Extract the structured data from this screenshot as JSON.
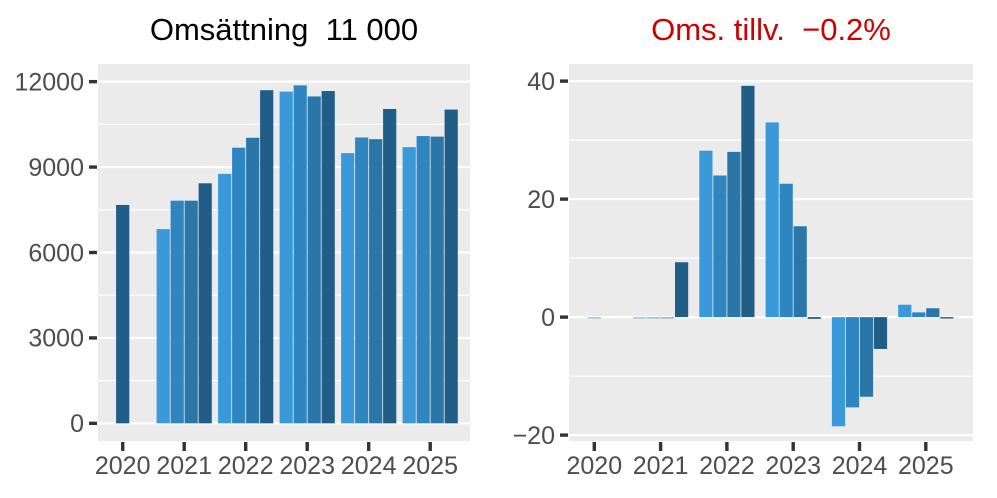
{
  "figure": {
    "background": "#ffffff",
    "panel_background": "#ebebeb",
    "grid_color": "#ffffff",
    "axis_text_color": "#4d4d4d",
    "tick_mark_color": "#333333"
  },
  "chart_data": [
    {
      "type": "bar",
      "title": "Omsättning  11 000",
      "title_color": "#000000",
      "legend": "none",
      "grid": "horizontal-only",
      "x_tick_labels": [
        "2020",
        "2021",
        "2022",
        "2023",
        "2024",
        "2025"
      ],
      "y_ticks": [
        0,
        3000,
        6000,
        9000,
        12000
      ],
      "y_tick_labels": [
        "0",
        "3000",
        "6000",
        "9000",
        "12000"
      ],
      "y_minor": [
        1500,
        4500,
        7500,
        10500
      ],
      "ylim": [
        -620,
        12620
      ],
      "bar_colors": [
        "#3a99d9",
        "#2e86c1",
        "#2b76a9",
        "#215e87"
      ],
      "groups": [
        {
          "year": "2020",
          "bars": [
            {
              "value": 7670,
              "color_index": 3,
              "centered": true
            }
          ]
        },
        {
          "year": "2021",
          "bars": [
            {
              "value": 6820,
              "color_index": 0
            },
            {
              "value": 7820,
              "color_index": 1
            },
            {
              "value": 7820,
              "color_index": 2
            },
            {
              "value": 8430,
              "color_index": 3
            }
          ]
        },
        {
          "year": "2022",
          "bars": [
            {
              "value": 8760,
              "color_index": 0
            },
            {
              "value": 9680,
              "color_index": 1
            },
            {
              "value": 10030,
              "color_index": 2
            },
            {
              "value": 11700,
              "color_index": 3
            }
          ]
        },
        {
          "year": "2023",
          "bars": [
            {
              "value": 11650,
              "color_index": 0
            },
            {
              "value": 11870,
              "color_index": 1
            },
            {
              "value": 11480,
              "color_index": 2
            },
            {
              "value": 11670,
              "color_index": 3
            }
          ]
        },
        {
          "year": "2024",
          "bars": [
            {
              "value": 9490,
              "color_index": 0
            },
            {
              "value": 10040,
              "color_index": 1
            },
            {
              "value": 9980,
              "color_index": 2
            },
            {
              "value": 11040,
              "color_index": 3
            }
          ]
        },
        {
          "year": "2025",
          "bars": [
            {
              "value": 9700,
              "color_index": 0
            },
            {
              "value": 10090,
              "color_index": 1
            },
            {
              "value": 10070,
              "color_index": 2
            },
            {
              "value": 11020,
              "color_index": 3
            }
          ]
        }
      ]
    },
    {
      "type": "bar",
      "title": "Oms. tillv.  −0.2%",
      "title_color": "#cc0000",
      "legend": "none",
      "grid": "horizontal-only",
      "x_tick_labels": [
        "2020",
        "2021",
        "2022",
        "2023",
        "2024",
        "2025"
      ],
      "y_ticks": [
        -20,
        0,
        20,
        40
      ],
      "y_tick_labels": [
        "−20",
        "0",
        "20",
        "40"
      ],
      "y_minor": [
        -10,
        10,
        30
      ],
      "ylim": [
        -21,
        42.9
      ],
      "bar_colors": [
        "#3a99d9",
        "#2e86c1",
        "#2b76a9",
        "#215e87"
      ],
      "groups": [
        {
          "year": "2020",
          "bars": [
            {
              "value": -0.1,
              "color_index": 0,
              "centered": true,
              "faint": true
            }
          ]
        },
        {
          "year": "2021",
          "bars": [
            {
              "value": -0.1,
              "color_index": 0,
              "faint": true
            },
            {
              "value": -0.1,
              "color_index": 1,
              "faint": true
            },
            {
              "value": -0.1,
              "color_index": 2,
              "faint": true
            },
            {
              "value": 9.3,
              "color_index": 3
            }
          ]
        },
        {
          "year": "2022",
          "bars": [
            {
              "value": 28.2,
              "color_index": 0
            },
            {
              "value": 24,
              "color_index": 1
            },
            {
              "value": 28,
              "color_index": 2
            },
            {
              "value": 39.2,
              "color_index": 3
            }
          ]
        },
        {
          "year": "2023",
          "bars": [
            {
              "value": 33,
              "color_index": 0
            },
            {
              "value": 22.6,
              "color_index": 1
            },
            {
              "value": 15.4,
              "color_index": 2
            },
            {
              "value": -0.3,
              "color_index": 3
            }
          ]
        },
        {
          "year": "2024",
          "bars": [
            {
              "value": -18.5,
              "color_index": 0
            },
            {
              "value": -15.3,
              "color_index": 1
            },
            {
              "value": -13.5,
              "color_index": 2
            },
            {
              "value": -5.4,
              "color_index": 3
            }
          ]
        },
        {
          "year": "2025",
          "bars": [
            {
              "value": 2.1,
              "color_index": 0
            },
            {
              "value": 0.8,
              "color_index": 1
            },
            {
              "value": 1.5,
              "color_index": 2
            },
            {
              "value": -0.2,
              "color_index": 3
            }
          ]
        }
      ]
    }
  ]
}
